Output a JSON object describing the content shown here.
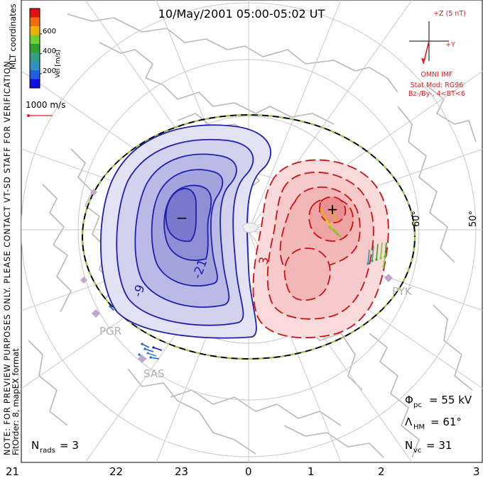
{
  "header": {
    "title": "10/May/2001 05:00-05:02 UT"
  },
  "coords": {
    "label": "MLT coordinates"
  },
  "colorbar": {
    "title": "Vel [m/s]",
    "ticks": [
      "600",
      "400",
      "200"
    ],
    "colors": [
      "#e01010",
      "#f06a10",
      "#f0b000",
      "#70d030",
      "#30a030",
      "#30a080",
      "#3090c0",
      "#2060e0",
      "#1010e0"
    ]
  },
  "scale": {
    "label": "1000 m/s",
    "color": "#e02020"
  },
  "notice": {
    "line1": "NOTE: FOR PREVIEW PURPOSES ONLY. PLEASE CONTACT VT-SD STAFF FOR VERIFICATION.",
    "line2": "FitOrder: 8, mapEX format"
  },
  "imf": {
    "z_label": "+Z (5 nT)",
    "y_label": "+Y",
    "source": "OMNI IMF",
    "model": "Stat Mod: RG96",
    "condition": "Bz-/By-, 4<BT<6",
    "color": "#e02020"
  },
  "latitudes": [
    "60°",
    "50°"
  ],
  "contours": {
    "negative_labels": [
      "-9",
      "-21"
    ],
    "positive_label": "3",
    "min_marker": "−",
    "max_marker": "+",
    "negative_color": "#2020b0",
    "positive_color": "#d01010"
  },
  "stations": [
    "PGR",
    "SAS",
    "PYK"
  ],
  "stats": {
    "phi_pc": {
      "symbol": "Φ",
      "sub": "pc",
      "value": "= 55 kV"
    },
    "lambda_hm": {
      "symbol": "Λ",
      "sub": "HM",
      "value": "= 61°"
    },
    "n_vc": {
      "symbol": "N",
      "sub": "vc",
      "value": "= 31"
    },
    "n_rads": {
      "symbol": "N",
      "sub": "rads",
      "value": "= 3"
    }
  },
  "mlt_axis": [
    "21",
    "22",
    "23",
    "0",
    "1",
    "2",
    "3"
  ]
}
